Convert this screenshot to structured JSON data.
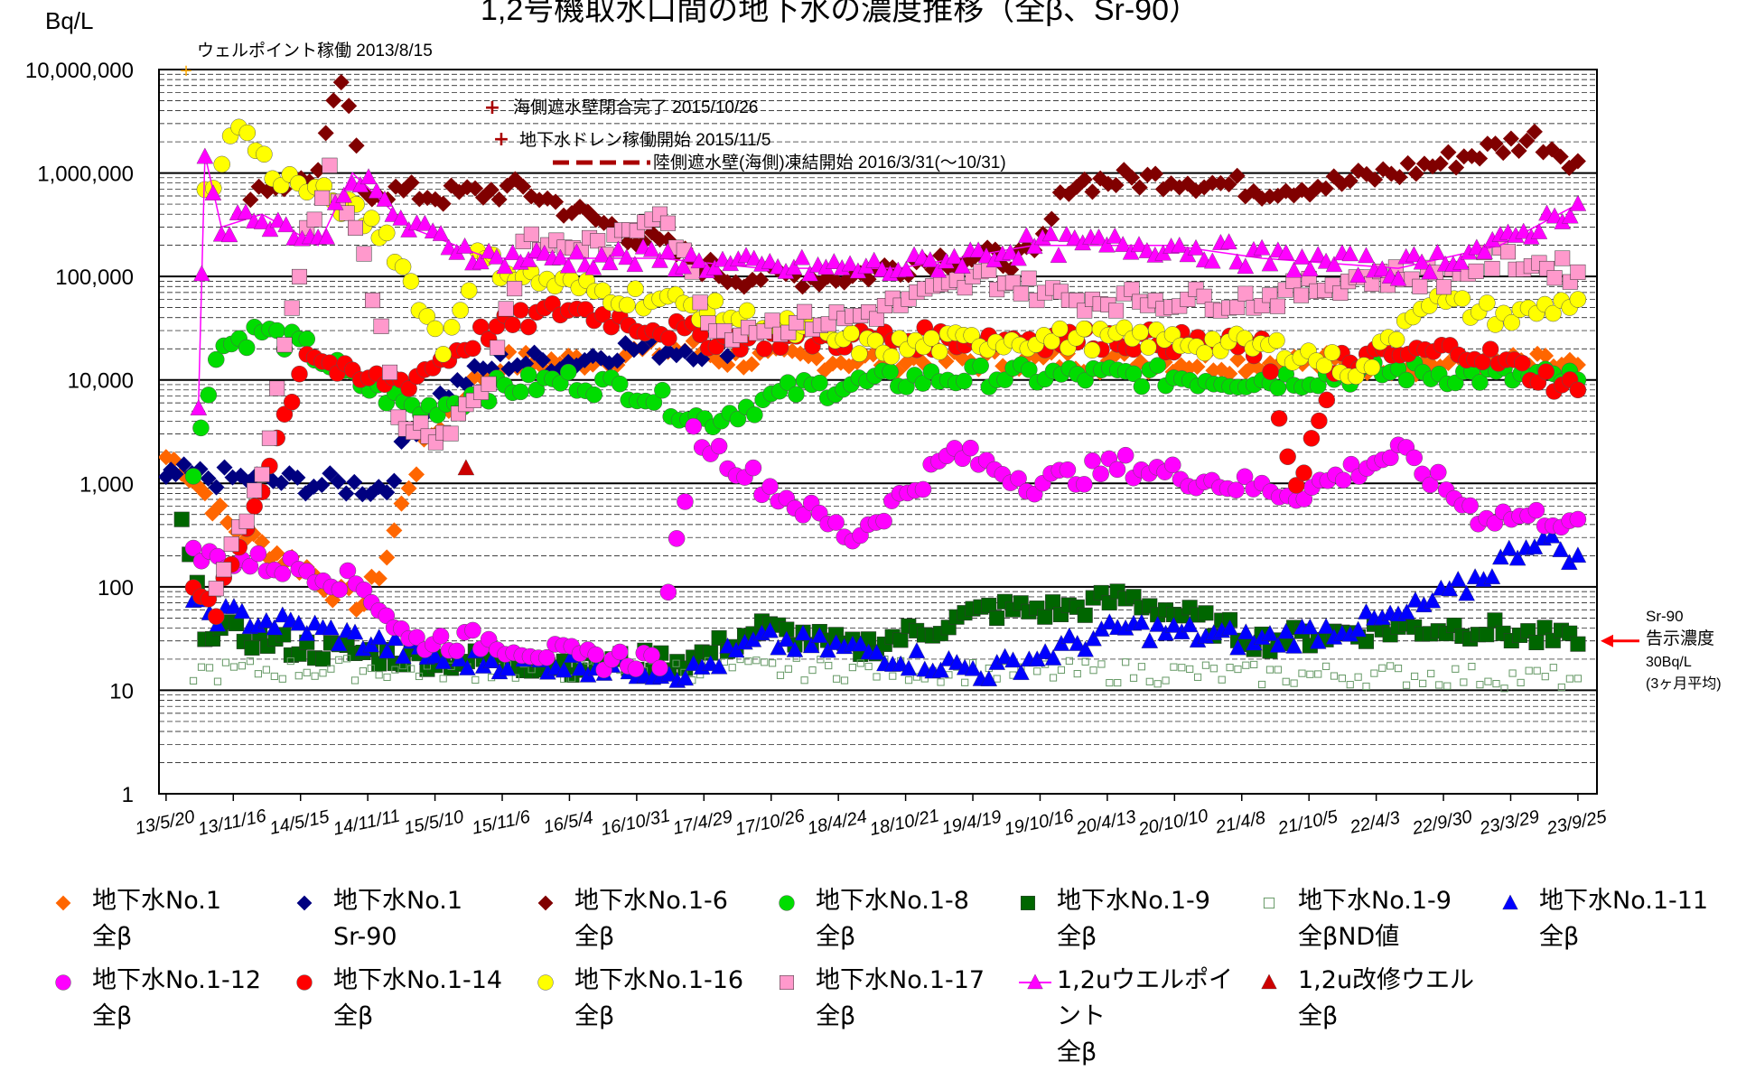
{
  "chart_data": {
    "type": "scatter",
    "title": "1,2号機取水口間の地下水の濃度推移（全β、Sr-90）",
    "ylabel": "Bq/L",
    "yscale": "log",
    "ylim": [
      1,
      10000000
    ],
    "ytick_labels": [
      "1",
      "10",
      "100",
      "1,000",
      "10,000",
      "100,000",
      "1,000,000",
      "10,000,000"
    ],
    "xlim": [
      "2013-05-01",
      "2023-11-15"
    ],
    "xtick_labels": [
      "13/5/20",
      "13/11/16",
      "14/5/15",
      "14/11/11",
      "15/5/10",
      "15/11/6",
      "16/5/4",
      "16/10/31",
      "17/4/29",
      "17/10/26",
      "18/4/24",
      "18/10/21",
      "19/4/19",
      "19/10/16",
      "20/4/13",
      "20/10/10",
      "21/4/8",
      "21/10/5",
      "22/4/3",
      "22/9/30",
      "23/3/29",
      "23/9/25"
    ],
    "xtick_dates": [
      "2013-05-20",
      "2013-11-16",
      "2014-05-15",
      "2014-11-11",
      "2015-05-10",
      "2015-11-06",
      "2016-05-04",
      "2016-10-31",
      "2017-04-29",
      "2017-10-26",
      "2018-04-24",
      "2018-10-21",
      "2019-04-19",
      "2019-10-16",
      "2020-04-13",
      "2020-10-10",
      "2021-04-08",
      "2021-10-05",
      "2022-04-03",
      "2022-09-30",
      "2023-03-29",
      "2023-09-25"
    ],
    "grid": true,
    "legend_position": "bottom",
    "annotations": {
      "wellpoint": {
        "text": "ウェルポイント稼働 2013/8/15",
        "date": "2013-08-15"
      },
      "seawall": {
        "text": "海側遮水壁閉合完了 2015/10/26",
        "date": "2015-10-26"
      },
      "drain": {
        "text": "地下水ドレン稼働開始 2015/11/5",
        "date": "2015-11-05"
      },
      "frozen": {
        "text": "陸側遮水壁(海側)凍結開始 2016/3/31(～10/31)",
        "date": "2016-03-31"
      },
      "limit_line1": "Sr-90",
      "limit_line2": "告示濃度",
      "limit_line3": "30Bq/L",
      "limit_line4": "(3ヶ月平均)",
      "limit_value": 30
    },
    "series": [
      {
        "name": "地下水No.1\n全β",
        "color": "#ff6600",
        "marker": "diamond",
        "points": [
          [
            "2013-05-20",
            1800
          ],
          [
            "2013-07-01",
            1500
          ],
          [
            "2013-09-01",
            800
          ],
          [
            "2013-11-01",
            400
          ],
          [
            "2014-02-01",
            250
          ],
          [
            "2014-06-01",
            150
          ],
          [
            "2014-09-01",
            80
          ],
          [
            "2014-11-01",
            70
          ],
          [
            "2015-01-01",
            200
          ],
          [
            "2015-03-01",
            1000
          ],
          [
            "2015-05-01",
            3000
          ],
          [
            "2015-08-01",
            8000
          ],
          [
            "2015-11-01",
            15000
          ],
          [
            "2016-05-01",
            15000
          ],
          [
            "2016-10-01",
            18000
          ],
          [
            "2017-04-01",
            20000
          ],
          [
            "2017-07-01",
            16000
          ],
          [
            "2023-09-25",
            14000
          ]
        ]
      },
      {
        "name": "地下水No.1\nSr-90",
        "color": "#000080",
        "marker": "diamond",
        "points": [
          [
            "2013-05-20",
            1000
          ],
          [
            "2013-06-15",
            1200
          ],
          [
            "2015-01-01",
            900
          ],
          [
            "2015-03-01",
            3000
          ],
          [
            "2015-05-01",
            6000
          ],
          [
            "2015-08-01",
            10000
          ],
          [
            "2015-11-01",
            15000
          ],
          [
            "2016-05-01",
            15000
          ],
          [
            "2016-10-01",
            20000
          ],
          [
            "2017-04-01",
            20000
          ],
          [
            "2017-07-01",
            17000
          ]
        ]
      },
      {
        "name": "地下水No.1-6\n全β",
        "color": "#800000",
        "marker": "diamond",
        "points": [
          [
            "2014-01-01",
            700000
          ],
          [
            "2014-04-01",
            800000
          ],
          [
            "2014-07-01",
            1000000
          ],
          [
            "2014-09-01",
            8000000
          ],
          [
            "2014-11-01",
            700000
          ],
          [
            "2015-06-01",
            600000
          ],
          [
            "2016-01-01",
            700000
          ],
          [
            "2016-06-01",
            400000
          ],
          [
            "2017-01-01",
            200000
          ],
          [
            "2017-07-01",
            100000
          ],
          [
            "2018-06-01",
            100000
          ],
          [
            "2019-01-01",
            150000
          ],
          [
            "2019-10-01",
            150000
          ],
          [
            "2020-01-01",
            800000
          ],
          [
            "2020-10-01",
            900000
          ],
          [
            "2021-06-01",
            700000
          ],
          [
            "2022-01-01",
            800000
          ],
          [
            "2022-09-01",
            1200000
          ],
          [
            "2023-06-01",
            2200000
          ],
          [
            "2023-09-25",
            1300000
          ]
        ]
      },
      {
        "name": "地下水No.1-8\n全β",
        "color": "#00dd00",
        "marker": "circle",
        "points": [
          [
            "2013-08-01",
            1200
          ],
          [
            "2013-10-01",
            20000
          ],
          [
            "2014-02-01",
            30000
          ],
          [
            "2014-06-01",
            20000
          ],
          [
            "2014-10-01",
            10000
          ],
          [
            "2015-04-01",
            5000
          ],
          [
            "2015-10-01",
            8000
          ],
          [
            "2016-05-01",
            10000
          ],
          [
            "2016-11-01",
            8000
          ],
          [
            "2017-05-01",
            4000
          ],
          [
            "2018-01-01",
            8000
          ],
          [
            "2018-10-01",
            10000
          ],
          [
            "2019-06-01",
            11000
          ],
          [
            "2020-06-01",
            11000
          ],
          [
            "2021-06-01",
            10000
          ],
          [
            "2022-06-01",
            12000
          ],
          [
            "2023-09-25",
            10000
          ]
        ]
      },
      {
        "name": "地下水No.1-9\n全β",
        "color": "#006600",
        "marker": "square",
        "points": [
          [
            "2013-07-01",
            400
          ],
          [
            "2013-09-01",
            40
          ],
          [
            "2014-06-01",
            25
          ],
          [
            "2015-06-01",
            20
          ],
          [
            "2016-06-01",
            18
          ],
          [
            "2017-04-01",
            20
          ],
          [
            "2017-10-01",
            40
          ],
          [
            "2018-06-01",
            25
          ],
          [
            "2019-01-01",
            40
          ],
          [
            "2019-06-01",
            60
          ],
          [
            "2020-01-01",
            60
          ],
          [
            "2020-06-01",
            80
          ],
          [
            "2021-06-01",
            30
          ],
          [
            "2022-06-01",
            40
          ],
          [
            "2023-01-01",
            40
          ],
          [
            "2023-09-25",
            28
          ]
        ]
      },
      {
        "name": "地下水No.1-9\n全βND値",
        "color": "#669966",
        "marker": "open-square",
        "points": [
          [
            "2013-08-01",
            15
          ],
          [
            "2014-06-01",
            16
          ],
          [
            "2015-06-01",
            16
          ],
          [
            "2016-06-01",
            16
          ],
          [
            "2017-06-01",
            16
          ],
          [
            "2018-06-01",
            16
          ],
          [
            "2019-06-01",
            15
          ],
          [
            "2020-06-01",
            15
          ],
          [
            "2021-06-01",
            14
          ],
          [
            "2022-06-01",
            14
          ],
          [
            "2023-09-25",
            13
          ]
        ]
      },
      {
        "name": "地下水No.1-11\n全β",
        "color": "#0000ff",
        "marker": "triangle",
        "points": [
          [
            "2013-08-01",
            60
          ],
          [
            "2014-06-01",
            40
          ],
          [
            "2015-06-01",
            20
          ],
          [
            "2016-06-01",
            18
          ],
          [
            "2017-04-01",
            15
          ],
          [
            "2017-10-01",
            30
          ],
          [
            "2018-06-01",
            25
          ],
          [
            "2019-06-01",
            15
          ],
          [
            "2020-06-01",
            40
          ],
          [
            "2021-06-01",
            30
          ],
          [
            "2022-06-01",
            50
          ],
          [
            "2022-12-01",
            100
          ],
          [
            "2023-06-01",
            300
          ],
          [
            "2023-09-25",
            200
          ]
        ]
      },
      {
        "name": "地下水No.1-12\n全β",
        "color": "#ff00ff",
        "marker": "circle",
        "points": [
          [
            "2013-08-01",
            200
          ],
          [
            "2014-06-01",
            150
          ],
          [
            "2014-11-01",
            100
          ],
          [
            "2015-03-01",
            30
          ],
          [
            "2015-10-01",
            30
          ],
          [
            "2016-06-01",
            20
          ],
          [
            "2017-01-01",
            20
          ],
          [
            "2017-04-01",
            3000
          ],
          [
            "2017-10-01",
            1000
          ],
          [
            "2018-06-01",
            300
          ],
          [
            "2019-03-01",
            2000
          ],
          [
            "2019-10-01",
            1000
          ],
          [
            "2020-06-01",
            1500
          ],
          [
            "2021-03-01",
            1000
          ],
          [
            "2021-09-01",
            800
          ],
          [
            "2022-06-01",
            2000
          ],
          [
            "2023-01-01",
            500
          ],
          [
            "2023-09-25",
            450
          ]
        ]
      },
      {
        "name": "地下水No.1-14\n全β",
        "color": "#ff0000",
        "marker": "circle",
        "points": [
          [
            "2013-08-01",
            80
          ],
          [
            "2013-10-01",
            60
          ],
          [
            "2014-02-01",
            1000
          ],
          [
            "2014-06-01",
            20000
          ],
          [
            "2014-10-01",
            10000
          ],
          [
            "2015-03-01",
            10000
          ],
          [
            "2015-10-01",
            30000
          ],
          [
            "2016-05-01",
            50000
          ],
          [
            "2016-11-01",
            35000
          ],
          [
            "2017-06-01",
            25000
          ],
          [
            "2018-06-01",
            25000
          ],
          [
            "2019-06-01",
            25000
          ],
          [
            "2020-06-01",
            25000
          ],
          [
            "2021-06-01",
            20000
          ],
          [
            "2021-09-01",
            1000
          ],
          [
            "2022-01-01",
            15000
          ],
          [
            "2022-12-01",
            20000
          ],
          [
            "2023-09-25",
            8000
          ]
        ]
      },
      {
        "name": "地下水No.1-16\n全β",
        "color": "#ffff00",
        "marker": "circle",
        "points": [
          [
            "2013-09-01",
            600000
          ],
          [
            "2013-12-01",
            3000000
          ],
          [
            "2014-03-01",
            1000000
          ],
          [
            "2014-09-01",
            500000
          ],
          [
            "2015-01-01",
            250000
          ],
          [
            "2015-06-01",
            20000
          ],
          [
            "2015-09-01",
            150000
          ],
          [
            "2016-01-01",
            100000
          ],
          [
            "2016-08-01",
            70000
          ],
          [
            "2017-01-01",
            60000
          ],
          [
            "2017-08-01",
            40000
          ],
          [
            "2018-08-01",
            20000
          ],
          [
            "2019-08-01",
            25000
          ],
          [
            "2020-08-01",
            25000
          ],
          [
            "2021-08-01",
            20000
          ],
          [
            "2022-03-01",
            12000
          ],
          [
            "2022-08-01",
            60000
          ],
          [
            "2023-04-01",
            40000
          ],
          [
            "2023-09-25",
            60000
          ]
        ]
      },
      {
        "name": "地下水No.1-17\n全β",
        "color": "#ff99cc",
        "marker": "square",
        "points": [
          [
            "2013-10-01",
            100
          ],
          [
            "2014-02-01",
            1000
          ],
          [
            "2014-06-01",
            300000
          ],
          [
            "2014-08-01",
            1000000
          ],
          [
            "2014-11-01",
            200000
          ],
          [
            "2015-02-01",
            4000
          ],
          [
            "2015-06-01",
            3000
          ],
          [
            "2015-10-01",
            10000
          ],
          [
            "2016-01-01",
            200000
          ],
          [
            "2016-09-01",
            200000
          ],
          [
            "2017-01-01",
            500000
          ],
          [
            "2017-06-01",
            30000
          ],
          [
            "2018-06-01",
            40000
          ],
          [
            "2019-06-01",
            100000
          ],
          [
            "2020-01-01",
            60000
          ],
          [
            "2020-10-01",
            60000
          ],
          [
            "2021-06-01",
            60000
          ],
          [
            "2022-03-01",
            100000
          ],
          [
            "2022-10-01",
            100000
          ],
          [
            "2023-03-01",
            150000
          ],
          [
            "2023-09-25",
            110000
          ]
        ]
      },
      {
        "name": "1,2uウエルポイント\n全β",
        "color": "#ff00ff",
        "marker": "line-triangle",
        "points": [
          [
            "2013-08-15",
            6000
          ],
          [
            "2013-09-01",
            1500000
          ],
          [
            "2013-10-15",
            300000
          ],
          [
            "2014-02-01",
            400000
          ],
          [
            "2014-07-01",
            200000
          ],
          [
            "2014-10-01",
            1000000
          ],
          [
            "2015-03-01",
            300000
          ],
          [
            "2015-10-01",
            150000
          ],
          [
            "2016-05-01",
            150000
          ],
          [
            "2017-01-01",
            150000
          ],
          [
            "2017-10-01",
            120000
          ],
          [
            "2018-10-01",
            120000
          ],
          [
            "2019-10-01",
            200000
          ],
          [
            "2020-10-01",
            200000
          ],
          [
            "2021-06-01",
            150000
          ],
          [
            "2022-06-01",
            120000
          ],
          [
            "2023-03-01",
            200000
          ],
          [
            "2023-09-25",
            500000
          ]
        ]
      },
      {
        "name": "1,2u改修ウエル\n全β",
        "color": "#cc0000",
        "marker": "triangle",
        "points": [
          [
            "2015-08-01",
            1400
          ]
        ]
      }
    ]
  }
}
